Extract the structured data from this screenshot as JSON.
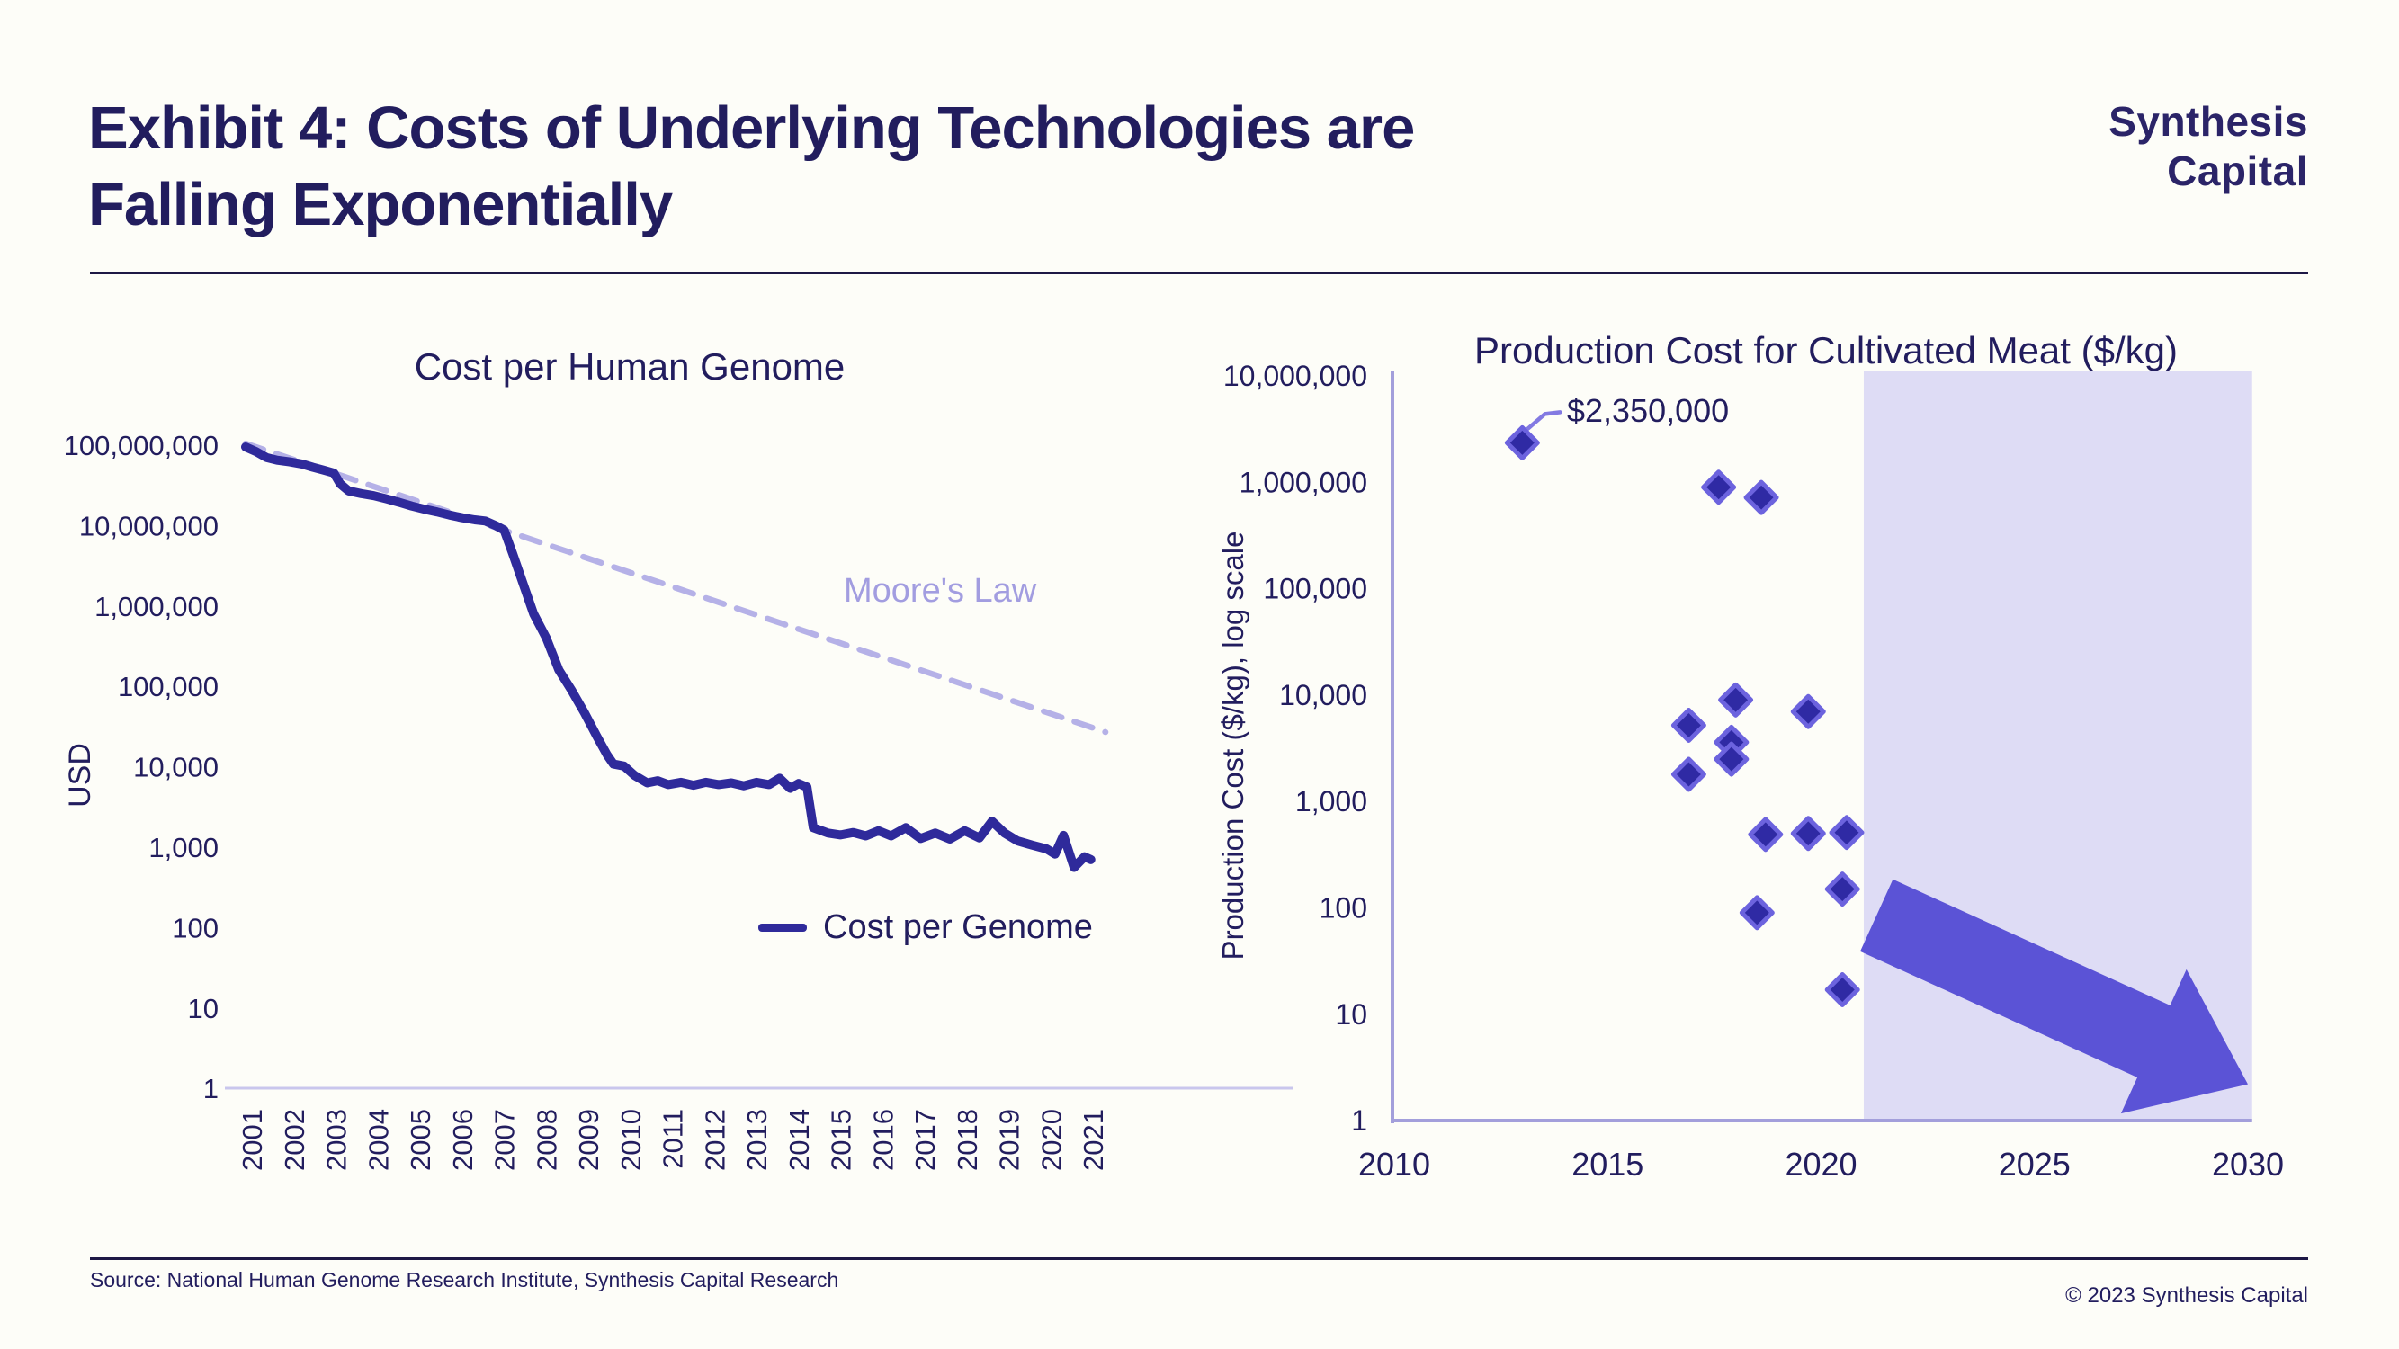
{
  "page": {
    "title_line1": "Exhibit 4: Costs of Underlying Technologies are",
    "title_line2": "Falling Exponentially",
    "logo_line1": "Synthesis",
    "logo_line2": "Capital",
    "source": "Source: National Human Genome Research Institute, Synthesis Capital Research",
    "copyright": "© 2023 Synthesis Capital"
  },
  "colors": {
    "navy": "#221d5e",
    "line": "#2f2a9b",
    "diamond_fill": "#2f2aa4",
    "diamond_stroke": "#6c63de",
    "dashed": "#b5b1e7",
    "moore_label": "#a29de0",
    "axis_light": "#a39fdb",
    "grid_light": "#c9c6ed",
    "shade": "#dedcf5",
    "arrow": "#5b53d6",
    "leader": "#837ae2"
  },
  "chart_data": [
    {
      "type": "line",
      "title": "Cost per Human Genome",
      "ylabel": "USD",
      "legend_label": "Cost per Genome",
      "moore_label": "Moore's Law",
      "y_log_scale": true,
      "ylim": [
        1,
        100000000
      ],
      "y_tick_values": [
        100000000,
        10000000,
        1000000,
        100000,
        10000,
        1000,
        100,
        10,
        1
      ],
      "y_tick_labels": [
        "100,000,000",
        "10,000,000",
        "1,000,000",
        "100,000",
        "10,000",
        "1,000",
        "100",
        "10",
        "1"
      ],
      "x_tick_labels": [
        "2001",
        "2002",
        "2003",
        "2004",
        "2005",
        "2006",
        "2007",
        "2008",
        "2009",
        "2010",
        "2011",
        "2012",
        "2013",
        "2014",
        "2015",
        "2016",
        "2017",
        "2018",
        "2019",
        "2020",
        "2021"
      ],
      "moore_line": {
        "x1": 2000.85,
        "y1": 105000000,
        "x2": 2021.3,
        "y2": 27000
      },
      "series": [
        [
          2000.85,
          95000000
        ],
        [
          2001.1,
          83000000
        ],
        [
          2001.35,
          70000000
        ],
        [
          2001.6,
          65000000
        ],
        [
          2001.9,
          62000000
        ],
        [
          2002.2,
          58000000
        ],
        [
          2002.45,
          53000000
        ],
        [
          2002.7,
          49000000
        ],
        [
          2002.95,
          45000000
        ],
        [
          2003.1,
          33000000
        ],
        [
          2003.3,
          27000000
        ],
        [
          2003.6,
          25000000
        ],
        [
          2003.9,
          23500000
        ],
        [
          2004.2,
          21500000
        ],
        [
          2004.5,
          19500000
        ],
        [
          2004.8,
          17500000
        ],
        [
          2005.1,
          16000000
        ],
        [
          2005.4,
          14800000
        ],
        [
          2005.7,
          13500000
        ],
        [
          2006.0,
          12500000
        ],
        [
          2006.3,
          11800000
        ],
        [
          2006.55,
          11400000
        ],
        [
          2006.8,
          10000000
        ],
        [
          2007.0,
          8800000
        ],
        [
          2007.2,
          4500000
        ],
        [
          2007.45,
          1900000
        ],
        [
          2007.7,
          800000
        ],
        [
          2008.0,
          400000
        ],
        [
          2008.3,
          160000
        ],
        [
          2008.6,
          90000
        ],
        [
          2008.9,
          48000
        ],
        [
          2009.2,
          24000
        ],
        [
          2009.45,
          14000
        ],
        [
          2009.6,
          10800
        ],
        [
          2009.85,
          10200
        ],
        [
          2010.1,
          7800
        ],
        [
          2010.4,
          6300
        ],
        [
          2010.65,
          6700
        ],
        [
          2010.9,
          6000
        ],
        [
          2011.2,
          6400
        ],
        [
          2011.5,
          5900
        ],
        [
          2011.8,
          6400
        ],
        [
          2012.1,
          6000
        ],
        [
          2012.4,
          6300
        ],
        [
          2012.7,
          5800
        ],
        [
          2013.0,
          6400
        ],
        [
          2013.3,
          6000
        ],
        [
          2013.55,
          7200
        ],
        [
          2013.8,
          5400
        ],
        [
          2014.0,
          6200
        ],
        [
          2014.2,
          5600
        ],
        [
          2014.35,
          1750
        ],
        [
          2014.7,
          1500
        ],
        [
          2015.0,
          1420
        ],
        [
          2015.3,
          1520
        ],
        [
          2015.6,
          1380
        ],
        [
          2015.9,
          1600
        ],
        [
          2016.2,
          1380
        ],
        [
          2016.55,
          1750
        ],
        [
          2016.9,
          1280
        ],
        [
          2017.25,
          1500
        ],
        [
          2017.6,
          1260
        ],
        [
          2017.95,
          1600
        ],
        [
          2018.3,
          1300
        ],
        [
          2018.6,
          2100
        ],
        [
          2018.9,
          1500
        ],
        [
          2019.2,
          1200
        ],
        [
          2019.55,
          1060
        ],
        [
          2019.9,
          950
        ],
        [
          2020.1,
          820
        ],
        [
          2020.3,
          1400
        ],
        [
          2020.55,
          560
        ],
        [
          2020.8,
          760
        ],
        [
          2020.95,
          700
        ]
      ]
    },
    {
      "type": "scatter",
      "title": "Production Cost for Cultivated Meat ($/kg)",
      "ylabel": "Production Cost ($/kg), log scale",
      "y_log_scale": true,
      "ylim": [
        1,
        10000000
      ],
      "xlim": [
        2010,
        2030
      ],
      "y_tick_values": [
        10000000,
        1000000,
        100000,
        10000,
        1000,
        100,
        10,
        1
      ],
      "y_tick_labels": [
        "10,000,000",
        "1,000,000",
        "100,000",
        "10,000",
        "1,000",
        "100",
        "10",
        "1"
      ],
      "x_tick_values": [
        2010,
        2015,
        2020,
        2025,
        2030
      ],
      "x_tick_labels": [
        "2010",
        "2015",
        "2020",
        "2025",
        "2030"
      ],
      "points": [
        [
          2013.0,
          2350000
        ],
        [
          2017.6,
          900000
        ],
        [
          2018.6,
          720000
        ],
        [
          2018.0,
          9000
        ],
        [
          2016.9,
          5200
        ],
        [
          2017.9,
          3600
        ],
        [
          2017.9,
          2500
        ],
        [
          2016.9,
          1800
        ],
        [
          2019.7,
          7000
        ],
        [
          2018.7,
          490
        ],
        [
          2019.7,
          500
        ],
        [
          2020.6,
          510
        ],
        [
          2020.5,
          150
        ],
        [
          2018.5,
          90
        ],
        [
          2020.5,
          17
        ]
      ],
      "annotation": {
        "label": "$2,350,000",
        "year": 2013.0,
        "value": 2350000
      },
      "forecast_shade": {
        "from_year": 2021.0,
        "to_year": 2030.1
      },
      "arrow": {
        "from": [
          2021.3,
          85
        ],
        "to": [
          2030.0,
          2.2
        ]
      }
    }
  ]
}
